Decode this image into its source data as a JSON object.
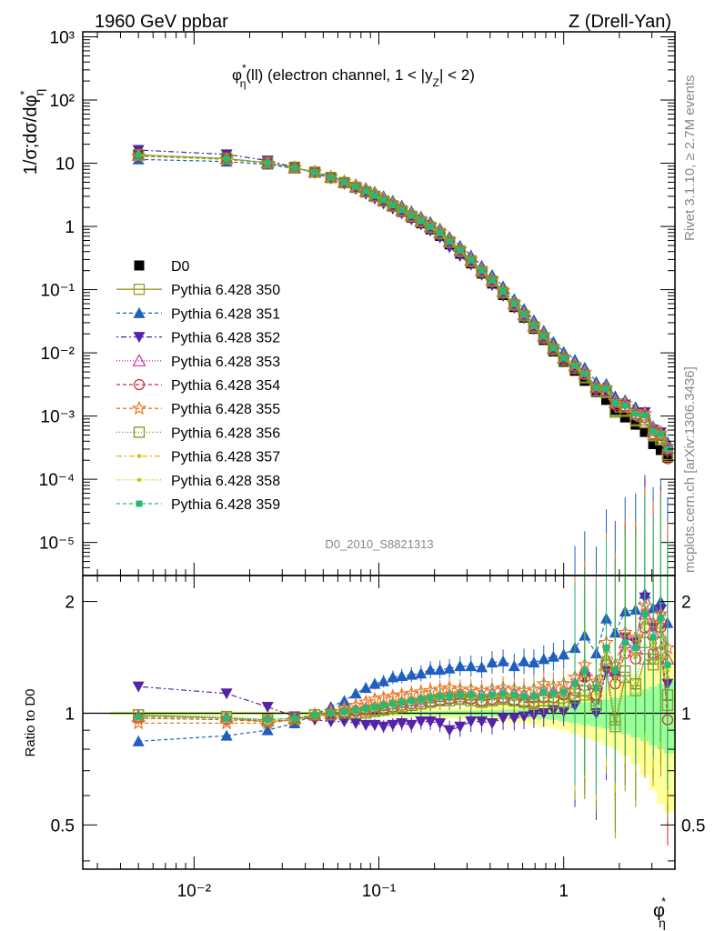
{
  "header": {
    "left": "1960 GeV ppbar",
    "right": "Z (Drell-Yan)"
  },
  "side_text": {
    "rivet": "Rivet 3.1.10, ≥ 2.7M events",
    "mcplots": "mcplots.cern.ch [arXiv:1306.3436]"
  },
  "chart_data": {
    "type": "line",
    "title": "φ*η(ll) (electron channel, 1 < |yZ| < 2)",
    "title_parts": {
      "phi": "φ",
      "star": "*",
      "eta": "η",
      "rest": "(ll) (electron channel, 1 < |y",
      "sub_z": "Z",
      "tail": "| < 2)"
    },
    "ylabel": "1/σ;dσ/dφ*η",
    "ylabel_parts": {
      "main": "1/σ;dσ/dφ",
      "star": "*",
      "eta": "η"
    },
    "xlabel": "φ*η",
    "xlabel_parts": {
      "phi": "φ",
      "star": "*",
      "eta": "η"
    },
    "ratio_ylabel": "Ratio to D0",
    "watermark": "D0_2010_S8821313",
    "x_scale": "log",
    "y_scale": "log",
    "xlim": [
      0.0025,
      4.0
    ],
    "ylim": [
      3e-06,
      1200
    ],
    "ratio_ylim": [
      0.38,
      2.35
    ],
    "x_ticks": [
      "10⁻²",
      "10⁻¹",
      "1"
    ],
    "y_ticks": [
      "10⁻⁵",
      "10⁻⁴",
      "10⁻³",
      "10⁻²",
      "10⁻¹",
      "1",
      "10",
      "10²",
      "10³"
    ],
    "ratio_ticks": [
      "0.5",
      "1",
      "2"
    ],
    "legend_position": "center-left",
    "x": [
      0.005,
      0.015,
      0.025,
      0.035,
      0.045,
      0.055,
      0.065,
      0.075,
      0.085,
      0.095,
      0.106,
      0.119,
      0.133,
      0.15,
      0.169,
      0.19,
      0.214,
      0.241,
      0.275,
      0.315,
      0.36,
      0.41,
      0.47,
      0.54,
      0.61,
      0.69,
      0.78,
      0.88,
      1.0,
      1.15,
      1.3,
      1.5,
      1.7,
      1.9,
      2.15,
      2.45,
      2.75,
      3.05,
      3.35,
      3.65
    ],
    "series": [
      {
        "name": "D0",
        "color": "#000000",
        "marker": "square-filled",
        "dash": "none",
        "values": [
          13.7,
          12.2,
          10.6,
          8.8,
          7.3,
          6.0,
          4.95,
          4.15,
          3.5,
          2.95,
          2.48,
          2.05,
          1.7,
          1.38,
          1.12,
          0.9,
          0.71,
          0.52,
          0.37,
          0.26,
          0.18,
          0.125,
          0.082,
          0.053,
          0.036,
          0.024,
          0.016,
          0.0105,
          0.0072,
          0.0052,
          0.0036,
          0.0024,
          0.0018,
          0.00125,
          0.00095,
          0.00073,
          0.00056,
          0.00036,
          0.00029,
          0.00022
        ],
        "ratio_band": {
          "stat": [
            0.006,
            0.006,
            0.006,
            0.006,
            0.006,
            0.006,
            0.007,
            0.007,
            0.008,
            0.008,
            0.009,
            0.009,
            0.01,
            0.01,
            0.011,
            0.012,
            0.013,
            0.014,
            0.015,
            0.017,
            0.019,
            0.02,
            0.022,
            0.025,
            0.028,
            0.03,
            0.035,
            0.04,
            0.05,
            0.06,
            0.07,
            0.08,
            0.09,
            0.1,
            0.12,
            0.14,
            0.16,
            0.18,
            0.2,
            0.22
          ],
          "total": [
            0.012,
            0.012,
            0.012,
            0.012,
            0.012,
            0.013,
            0.014,
            0.015,
            0.016,
            0.017,
            0.018,
            0.02,
            0.022,
            0.024,
            0.026,
            0.028,
            0.03,
            0.032,
            0.035,
            0.038,
            0.042,
            0.046,
            0.05,
            0.055,
            0.06,
            0.07,
            0.08,
            0.09,
            0.1,
            0.12,
            0.14,
            0.16,
            0.18,
            0.2,
            0.23,
            0.27,
            0.32,
            0.38,
            0.43,
            0.46
          ]
        }
      },
      {
        "name": "Pythia 6.428 350",
        "color": "#a39628",
        "marker": "square-open",
        "dash": "none",
        "ratio": [
          0.99,
          0.97,
          0.95,
          0.96,
          0.99,
          0.99,
          0.99,
          1.0,
          1.0,
          1.01,
          1.02,
          1.03,
          1.04,
          1.05,
          1.06,
          1.08,
          1.09,
          1.1,
          1.11,
          1.1,
          1.08,
          1.09,
          1.1,
          1.09,
          1.08,
          1.07,
          1.08,
          1.07,
          1.06,
          1.1,
          1.12,
          1.05,
          1.3,
          0.92,
          1.25,
          1.15,
          1.4,
          1.35,
          1.45,
          1.05
        ]
      },
      {
        "name": "Pythia 6.428 351",
        "color": "#1f5fbf",
        "marker": "triangle-up-filled",
        "dash": "4,3",
        "ratio": [
          0.84,
          0.87,
          0.9,
          0.94,
          0.99,
          1.04,
          1.08,
          1.13,
          1.17,
          1.2,
          1.22,
          1.25,
          1.26,
          1.27,
          1.28,
          1.31,
          1.31,
          1.32,
          1.34,
          1.34,
          1.33,
          1.37,
          1.38,
          1.34,
          1.38,
          1.37,
          1.4,
          1.42,
          1.44,
          1.5,
          1.62,
          1.45,
          1.8,
          1.65,
          1.88,
          1.9,
          2.1,
          1.92,
          2.0,
          1.75
        ]
      },
      {
        "name": "Pythia 6.428 352",
        "color": "#5522aa",
        "marker": "triangle-down-filled",
        "dash": "2,3,6,3",
        "ratio": [
          1.18,
          1.13,
          1.04,
          0.98,
          0.96,
          0.95,
          0.95,
          0.94,
          0.93,
          0.93,
          0.92,
          0.93,
          0.94,
          0.93,
          0.95,
          0.95,
          0.94,
          0.9,
          0.92,
          0.95,
          0.95,
          0.94,
          0.97,
          0.97,
          0.98,
          0.99,
          1.0,
          1.02,
          1.01,
          1.05,
          1.25,
          1.0,
          1.3,
          1.25,
          1.6,
          1.55,
          2.05,
          1.7,
          1.9,
          1.2
        ]
      },
      {
        "name": "Pythia 6.428 353",
        "color": "#cc33aa",
        "marker": "triangle-up-open",
        "dash": "1,2",
        "ratio": [
          0.98,
          0.97,
          0.96,
          0.97,
          0.99,
          1.0,
          1.01,
          1.02,
          1.03,
          1.04,
          1.05,
          1.06,
          1.07,
          1.08,
          1.09,
          1.1,
          1.11,
          1.12,
          1.13,
          1.12,
          1.12,
          1.13,
          1.14,
          1.13,
          1.12,
          1.11,
          1.15,
          1.14,
          1.15,
          1.2,
          1.3,
          1.2,
          1.4,
          1.3,
          1.55,
          1.5,
          1.85,
          1.65,
          1.8,
          1.4
        ]
      },
      {
        "name": "Pythia 6.428 354",
        "color": "#dd2233",
        "marker": "circle-open",
        "dash": "4,3",
        "ratio": [
          0.97,
          0.96,
          0.95,
          0.96,
          0.98,
          0.99,
          1.0,
          1.01,
          1.02,
          1.02,
          1.03,
          1.04,
          1.05,
          1.06,
          1.07,
          1.07,
          1.08,
          1.09,
          1.09,
          1.09,
          1.08,
          1.09,
          1.1,
          1.08,
          1.07,
          1.07,
          1.1,
          1.1,
          1.12,
          1.15,
          1.25,
          1.12,
          1.35,
          1.2,
          1.45,
          1.4,
          1.7,
          1.45,
          1.7,
          0.96
        ]
      },
      {
        "name": "Pythia 6.428 355",
        "color": "#ee7722",
        "marker": "star-open",
        "dash": "4,3",
        "ratio": [
          0.94,
          0.94,
          0.94,
          0.96,
          0.99,
          1.01,
          1.03,
          1.05,
          1.07,
          1.09,
          1.1,
          1.11,
          1.12,
          1.13,
          1.14,
          1.15,
          1.16,
          1.17,
          1.16,
          1.16,
          1.15,
          1.16,
          1.17,
          1.16,
          1.15,
          1.16,
          1.2,
          1.18,
          1.2,
          1.25,
          1.35,
          1.22,
          1.55,
          1.35,
          1.65,
          1.6,
          1.95,
          1.75,
          1.85,
          1.5
        ]
      },
      {
        "name": "Pythia 6.428 356",
        "color": "#7a9a1a",
        "marker": "square-open",
        "dash": "1,2",
        "ratio": [
          0.99,
          0.98,
          0.96,
          0.97,
          0.99,
          0.99,
          1.0,
          1.0,
          1.01,
          1.02,
          1.02,
          1.03,
          1.04,
          1.05,
          1.06,
          1.07,
          1.08,
          1.08,
          1.09,
          1.08,
          1.07,
          1.08,
          1.09,
          1.08,
          1.07,
          1.06,
          1.08,
          1.07,
          1.07,
          1.1,
          1.15,
          1.05,
          1.35,
          0.96,
          1.3,
          1.2,
          1.55,
          1.4,
          1.55,
          1.12
        ]
      },
      {
        "name": "Pythia 6.428 357",
        "color": "#ddbb00",
        "marker": "dot",
        "dash": "6,3,2,3",
        "ratio": [
          0.98,
          0.97,
          0.96,
          0.97,
          0.99,
          1.0,
          1.01,
          1.02,
          1.03,
          1.04,
          1.05,
          1.06,
          1.07,
          1.08,
          1.09,
          1.1,
          1.1,
          1.11,
          1.12,
          1.11,
          1.1,
          1.11,
          1.12,
          1.11,
          1.1,
          1.1,
          1.13,
          1.12,
          1.13,
          1.18,
          1.28,
          1.15,
          1.45,
          1.25,
          1.5,
          1.45,
          1.8,
          1.55,
          1.75,
          1.3
        ]
      },
      {
        "name": "Pythia 6.428 358",
        "color": "#bbcc00",
        "marker": "dot",
        "dash": "1,2",
        "ratio": [
          0.97,
          0.96,
          0.95,
          0.96,
          0.98,
          0.99,
          1.0,
          1.01,
          1.02,
          1.03,
          1.04,
          1.05,
          1.06,
          1.07,
          1.08,
          1.09,
          1.09,
          1.1,
          1.11,
          1.1,
          1.09,
          1.1,
          1.11,
          1.1,
          1.09,
          1.09,
          1.12,
          1.11,
          1.12,
          1.16,
          1.26,
          1.13,
          1.42,
          1.22,
          1.48,
          1.42,
          1.75,
          1.5,
          1.7,
          1.25
        ]
      },
      {
        "name": "Pythia 6.428 359",
        "color": "#22bb77",
        "marker": "square-filled-small",
        "dash": "4,3",
        "ratio": [
          0.98,
          0.97,
          0.96,
          0.97,
          0.99,
          1.0,
          1.01,
          1.02,
          1.03,
          1.04,
          1.05,
          1.06,
          1.07,
          1.08,
          1.09,
          1.1,
          1.11,
          1.11,
          1.12,
          1.12,
          1.11,
          1.12,
          1.13,
          1.12,
          1.11,
          1.11,
          1.14,
          1.13,
          1.14,
          1.2,
          1.3,
          1.17,
          1.5,
          1.3,
          1.55,
          1.5,
          1.85,
          1.6,
          1.8,
          1.35
        ]
      }
    ]
  }
}
